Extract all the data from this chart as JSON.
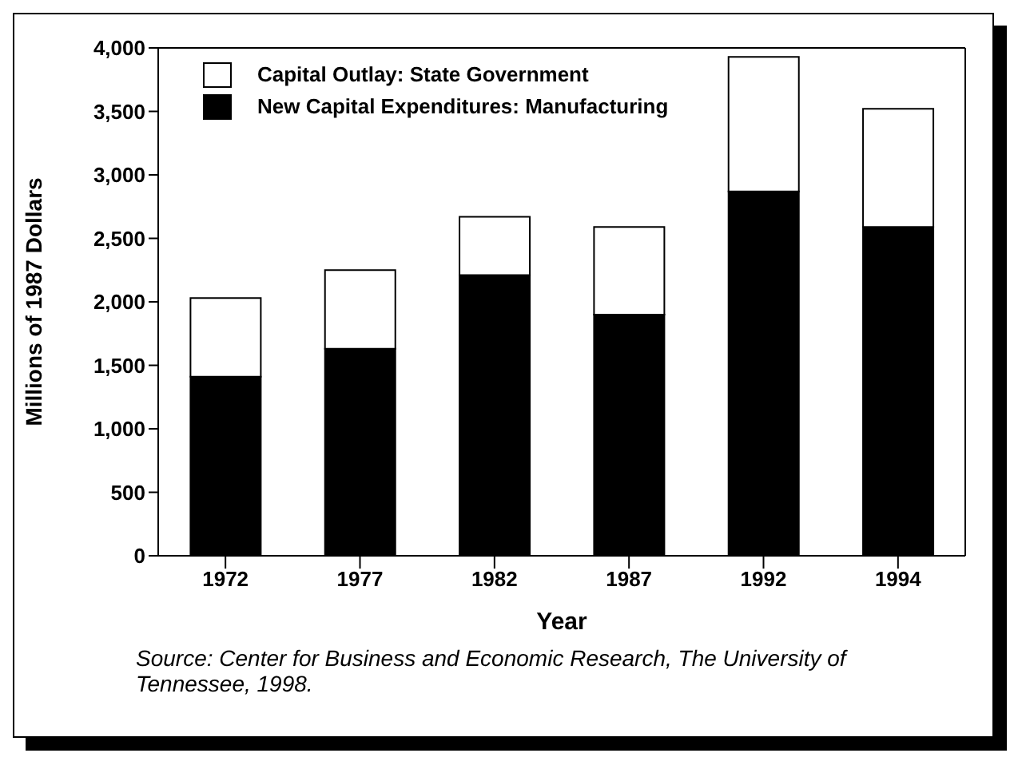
{
  "chart_data": {
    "type": "bar",
    "stacked": true,
    "xlabel": "Year",
    "ylabel": "Millions of 1987 Dollars",
    "categories": [
      "1972",
      "1977",
      "1982",
      "1987",
      "1992",
      "1994"
    ],
    "series": [
      {
        "name": "New Capital Expenditures: Manufacturing",
        "color": "#000000",
        "values": [
          1410,
          1630,
          2210,
          1900,
          2870,
          2590
        ]
      },
      {
        "name": "Capital Outlay: State Government",
        "color": "#ffffff",
        "values": [
          620,
          620,
          460,
          690,
          1060,
          930
        ]
      }
    ],
    "ylim": [
      0,
      4000
    ],
    "yticks": [
      {
        "value": 0,
        "label": "0"
      },
      {
        "value": 500,
        "label": "500"
      },
      {
        "value": 1000,
        "label": "1,000"
      },
      {
        "value": 1500,
        "label": "1,500"
      },
      {
        "value": 2000,
        "label": "2,000"
      },
      {
        "value": 2500,
        "label": "2,500"
      },
      {
        "value": 3000,
        "label": "3,000"
      },
      {
        "value": 3500,
        "label": "3,500"
      },
      {
        "value": 4000,
        "label": "4,000"
      }
    ],
    "grid": false,
    "legend": "top left",
    "annotations": [
      "Source: Center for Business and Economic Research, The University of Tennessee, 1998."
    ]
  }
}
